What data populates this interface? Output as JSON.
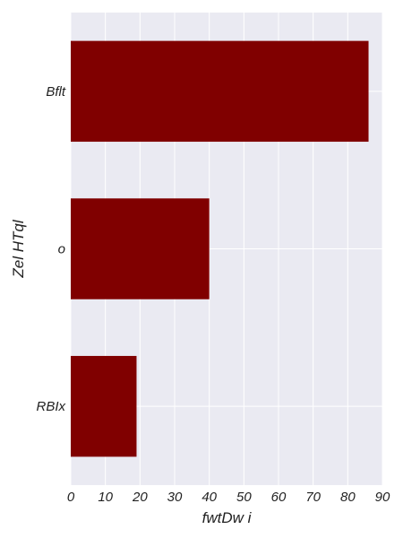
{
  "chart_data": {
    "type": "bar",
    "orientation": "horizontal",
    "categories": [
      "Bflt",
      "o",
      "RBIx"
    ],
    "values": [
      86,
      40,
      19
    ],
    "xlabel": "fwtDw i",
    "ylabel": "Zel HTql",
    "xlim": [
      0,
      90
    ],
    "xticks": [
      0,
      10,
      20,
      30,
      40,
      50,
      60,
      70,
      80,
      90
    ],
    "grid": true,
    "bar_color": "#800000",
    "background_color": "#EAEAF2",
    "grid_color": "#FFFFFF"
  }
}
